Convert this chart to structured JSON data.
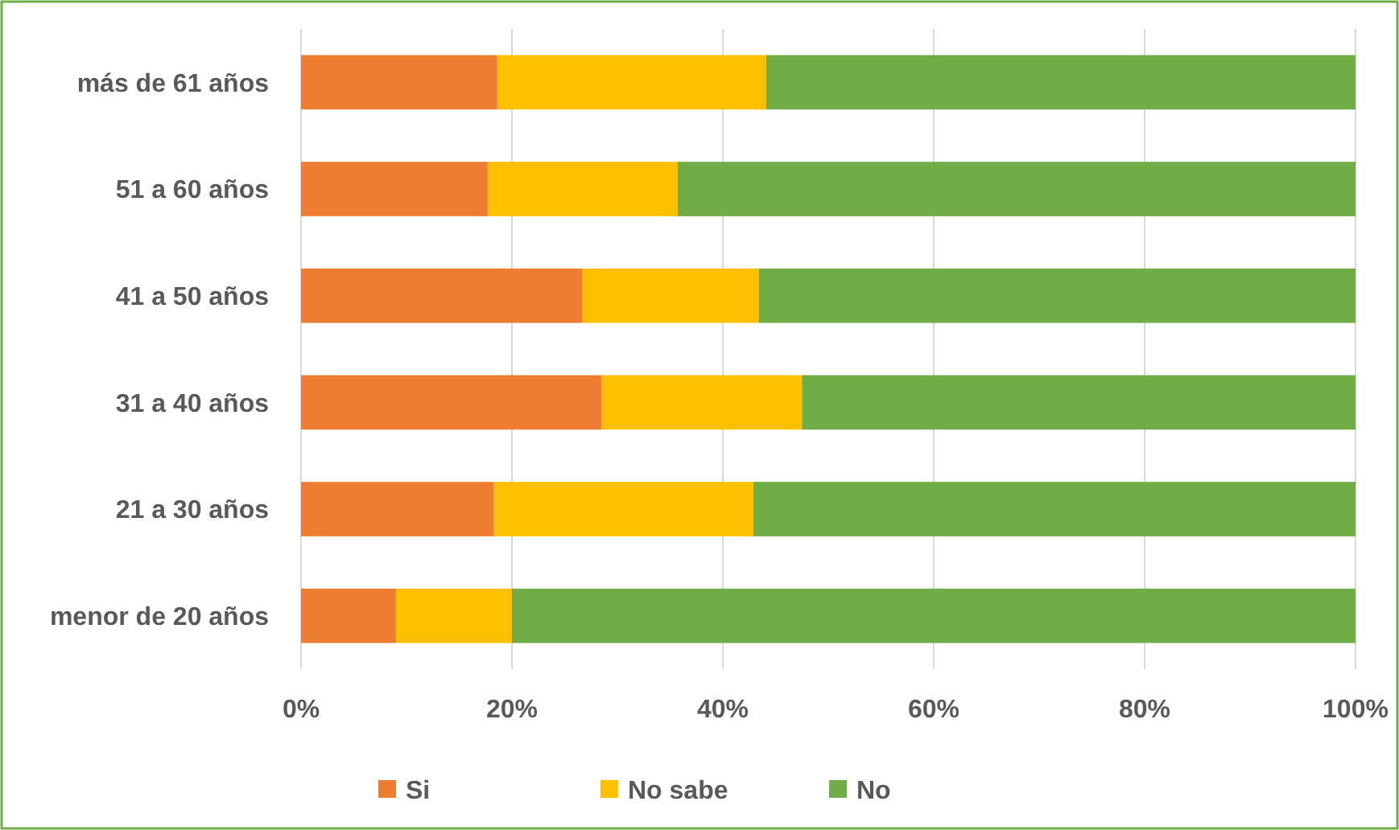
{
  "chart_data": {
    "type": "bar",
    "orientation": "horizontal",
    "stacked": true,
    "categories": [
      "más de 61 años",
      "51 a 60 años",
      "41 a 50 años",
      "31 a 40 años",
      "21 a 30 años",
      "menor de 20 años"
    ],
    "series": [
      {
        "name": "Si",
        "color": "#ed7d31",
        "values": [
          18.6,
          17.7,
          26.7,
          28.5,
          18.3,
          9.0
        ]
      },
      {
        "name": "No sabe",
        "color": "#ffc000",
        "values": [
          25.5,
          18.0,
          16.7,
          19.0,
          24.6,
          11.0
        ]
      },
      {
        "name": "No",
        "color": "#70ad47",
        "values": [
          55.9,
          64.3,
          56.6,
          52.5,
          57.1,
          80.0
        ]
      }
    ],
    "xlim": [
      0,
      100
    ],
    "xticks": [
      {
        "value": 0,
        "label": "0%"
      },
      {
        "value": 20,
        "label": "20%"
      },
      {
        "value": 40,
        "label": "40%"
      },
      {
        "value": 60,
        "label": "60%"
      },
      {
        "value": 80,
        "label": "80%"
      },
      {
        "value": 100,
        "label": "100%"
      }
    ],
    "grid": "x",
    "legend": "bottom"
  }
}
